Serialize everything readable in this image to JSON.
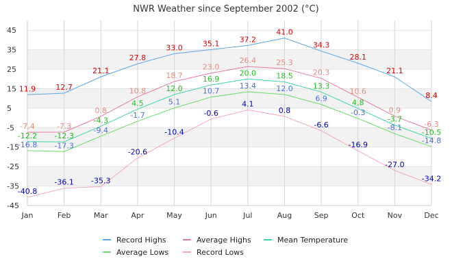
{
  "chart_data": {
    "type": "line",
    "title": "NWR Weather since September 2002 (°C)",
    "xlabel": "",
    "ylabel": "",
    "categories": [
      "Jan",
      "Feb",
      "Mar",
      "Apr",
      "May",
      "Jun",
      "Jul",
      "Aug",
      "Sep",
      "Oct",
      "Nov",
      "Dec"
    ],
    "ylim": [
      -45,
      50
    ],
    "yticks": [
      -45,
      -35,
      -25,
      -15,
      -5,
      5,
      15,
      25,
      35,
      45
    ],
    "grid": true,
    "legend_position": "bottom",
    "series": [
      {
        "name": "Record Highs",
        "color": "#5aa6e6",
        "label_color": "#dd0000",
        "values": [
          11.9,
          12.7,
          21.1,
          27.8,
          33.0,
          35.1,
          37.2,
          41.0,
          34.3,
          28.1,
          21.1,
          8.4
        ],
        "labels": [
          "11.9",
          "12.7",
          "21.1",
          "27.8",
          "33.0",
          "35.1",
          "37.2",
          "41.0",
          "34.3",
          "28.1",
          "21.1",
          "8.4"
        ]
      },
      {
        "name": "Average Highs",
        "color": "#e57aa0",
        "label_color": "#e88a80",
        "values": [
          -7.4,
          -7.3,
          0.8,
          10.8,
          18.7,
          23.0,
          26.4,
          25.3,
          20.3,
          10.6,
          0.9,
          -6.3
        ],
        "labels": [
          "-7.4",
          "-7.3",
          "0.8",
          "10.8",
          "18.7",
          "23.0",
          "26.4",
          "25.3",
          "20.3",
          "10.6",
          "0.9",
          "-6.3"
        ]
      },
      {
        "name": "Mean Temperature",
        "color": "#3dd6a0",
        "label_color": "#22bb22",
        "values": [
          -12.2,
          -12.3,
          -4.3,
          4.5,
          12.0,
          16.9,
          20.0,
          18.5,
          13.3,
          4.8,
          -3.7,
          -10.5
        ],
        "labels": [
          "-12.2",
          "-12.3",
          "-4.3",
          "4.5",
          "12.0",
          "16.9",
          "20.0",
          "18.5",
          "13.3",
          "4.8",
          "-3.7",
          "-10.5"
        ]
      },
      {
        "name": "Average Lows",
        "color": "#66dd66",
        "label_color": "#4d6fe0",
        "values": [
          -16.8,
          -17.3,
          -9.4,
          -1.7,
          5.1,
          10.7,
          13.4,
          12.0,
          6.9,
          -0.3,
          -8.1,
          -14.8
        ],
        "labels": [
          "-16.8",
          "-17.3",
          "-9.4",
          "-1.7",
          "5.1",
          "10.7",
          "13.4",
          "12.0",
          "6.9",
          "-0.3",
          "-8.1",
          "-14.8"
        ]
      },
      {
        "name": "Record Lows",
        "color": "#f2a8b2",
        "label_color": "#0000bb",
        "values": [
          -40.8,
          -36.1,
          -35.3,
          -20.6,
          -10.4,
          -0.6,
          4.1,
          0.8,
          -6.6,
          -16.9,
          -27.0,
          -34.2
        ],
        "labels": [
          "-40.8",
          "-36.1",
          "-35.3",
          "-20.6",
          "-10.4",
          "-0.6",
          "4.1",
          "0.8",
          "-6.6",
          "-16.9",
          "-27.0",
          "-34.2"
        ]
      }
    ]
  }
}
